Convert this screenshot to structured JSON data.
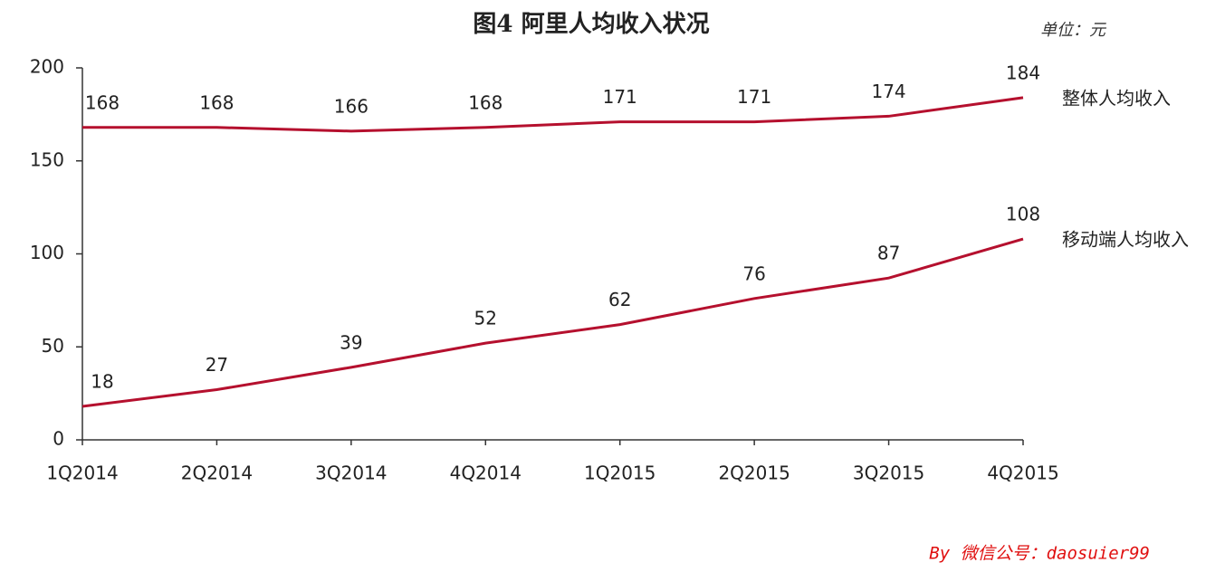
{
  "chart_data": {
    "type": "line",
    "title": "图4 阿里人均收入状况",
    "unit": "单位：元",
    "footer": "By 微信公号：daosuier99",
    "categories": [
      "1Q2014",
      "2Q2014",
      "3Q2014",
      "4Q2014",
      "1Q2015",
      "2Q2015",
      "3Q2015",
      "4Q2015"
    ],
    "series": [
      {
        "name": "整体人均收入",
        "color": "#b5102e",
        "values": [
          168,
          168,
          166,
          168,
          171,
          171,
          174,
          184
        ]
      },
      {
        "name": "移动端人均收入",
        "color": "#b5102e",
        "values": [
          18,
          27,
          39,
          52,
          62,
          76,
          87,
          108
        ]
      }
    ],
    "ylim": [
      0,
      200
    ],
    "yticks": [
      0,
      50,
      100,
      150,
      200
    ],
    "grid": false
  }
}
